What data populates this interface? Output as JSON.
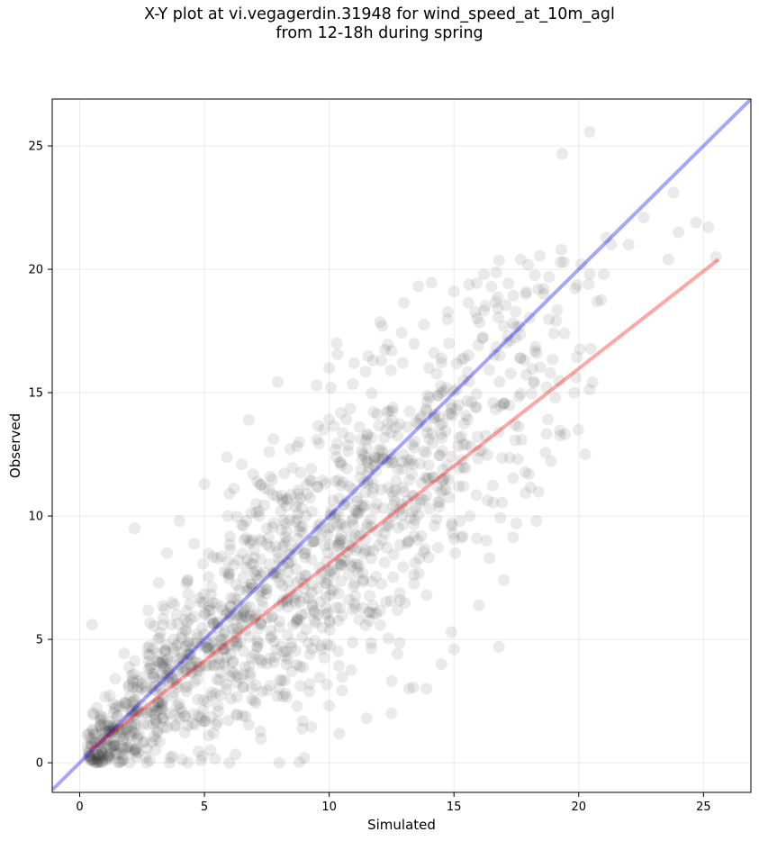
{
  "chart_data": {
    "type": "scatter",
    "title": [
      "X-Y plot at vi.vegagerdin.31948 for wind_speed_at_10m_agl",
      "from 12-18h during spring"
    ],
    "xlabel": "Simulated",
    "ylabel": "Observed",
    "xlim": [
      -1.1,
      26.9
    ],
    "ylim": [
      -1.2,
      26.9
    ],
    "xticks": [
      0,
      5,
      10,
      15,
      20,
      25
    ],
    "yticks": [
      0,
      5,
      10,
      15,
      20,
      25
    ],
    "grid": true,
    "point_color": "#333333",
    "point_alpha": 0.1,
    "reference_line": {
      "name": "1:1",
      "color": "#0000ff",
      "alpha": 0.35,
      "x": [
        -1.1,
        26.9
      ],
      "y": [
        -1.1,
        26.9
      ]
    },
    "regression_line": {
      "color": "#ff0000",
      "alpha": 0.35,
      "x": [
        0.4,
        25.6
      ],
      "y": [
        0.5,
        20.4
      ]
    },
    "sample_points": [
      [
        0.5,
        5.6
      ],
      [
        2.2,
        9.5
      ],
      [
        3.5,
        8.5
      ],
      [
        4.0,
        9.8
      ],
      [
        5.0,
        11.3
      ],
      [
        6.0,
        10.9
      ],
      [
        6.5,
        12.1
      ],
      [
        7.2,
        10.0
      ],
      [
        7.6,
        12.6
      ],
      [
        8.8,
        13.0
      ],
      [
        9.5,
        15.3
      ],
      [
        10.0,
        16.0
      ],
      [
        10.3,
        17.0
      ],
      [
        11.0,
        16.2
      ],
      [
        12.1,
        16.3
      ],
      [
        12.5,
        16.7
      ],
      [
        14.0,
        16.0
      ],
      [
        14.8,
        17.0
      ],
      [
        15.0,
        19.1
      ],
      [
        16.2,
        19.8
      ],
      [
        16.5,
        19.3
      ],
      [
        17.0,
        17.7
      ],
      [
        18.6,
        19.0
      ],
      [
        19.3,
        20.8
      ],
      [
        20.1,
        20.2
      ],
      [
        21.0,
        19.8
      ],
      [
        21.3,
        21.0
      ],
      [
        22.0,
        21.0
      ],
      [
        22.6,
        22.1
      ],
      [
        23.6,
        20.4
      ],
      [
        23.8,
        23.1
      ],
      [
        24.7,
        21.9
      ],
      [
        25.2,
        21.7
      ],
      [
        25.5,
        20.5
      ],
      [
        24.0,
        21.5
      ],
      [
        19.0,
        17.4
      ],
      [
        20.4,
        19.4
      ],
      [
        17.5,
        9.7
      ],
      [
        17.0,
        7.4
      ],
      [
        16.8,
        4.7
      ],
      [
        15.0,
        4.6
      ],
      [
        14.9,
        5.3
      ],
      [
        14.5,
        4.0
      ],
      [
        13.9,
        3.0
      ],
      [
        13.2,
        3.0
      ],
      [
        12.5,
        2.0
      ],
      [
        11.5,
        1.8
      ],
      [
        9.0,
        0.2
      ],
      [
        8.0,
        0.0
      ],
      [
        6.0,
        0.0
      ],
      [
        3.6,
        0.0
      ],
      [
        2.0,
        0.0
      ],
      [
        0.7,
        0.0
      ],
      [
        0.4,
        1.0
      ],
      [
        18.3,
        9.8
      ],
      [
        18.0,
        11.7
      ],
      [
        16.3,
        9.0
      ]
    ],
    "cluster_model": {
      "x_range": [
        0.3,
        21.5
      ],
      "ratio": 0.88,
      "noise": 2.3,
      "count": 1400
    }
  }
}
